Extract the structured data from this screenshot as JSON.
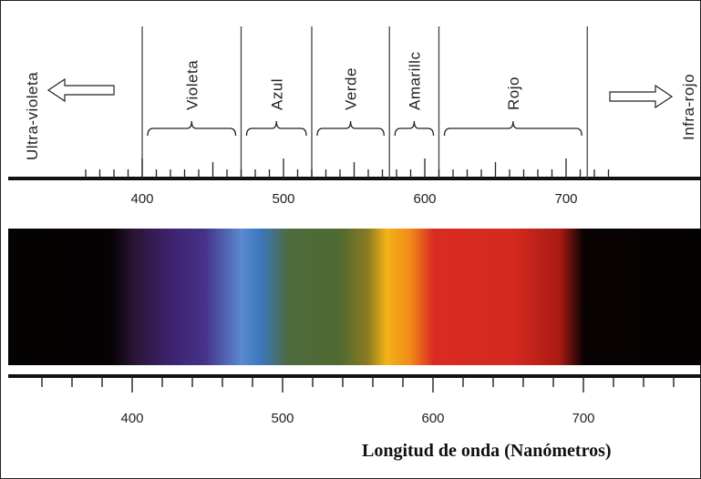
{
  "bands": [
    {
      "label": "Violeta",
      "from": 400,
      "to": 470
    },
    {
      "label": "Azul",
      "from": 470,
      "to": 520
    },
    {
      "label": "Verde",
      "from": 520,
      "to": 575
    },
    {
      "label": "Amarillc",
      "from": 575,
      "to": 610
    },
    {
      "label": "Rojo",
      "from": 610,
      "to": 715
    }
  ],
  "ultraviolet_label": "Ultra-violeta",
  "infrared_label": "Infra-rojo",
  "top_scale": {
    "ticks": [
      400,
      500,
      600,
      700
    ],
    "range": [
      360,
      730
    ]
  },
  "bottom_scale": {
    "ticks": [
      400,
      500,
      600,
      700
    ],
    "range": [
      340,
      780
    ]
  },
  "axis_title": "Longitud de onda (Nanómetros)",
  "spectrum_colors": [
    {
      "nm": 340,
      "color": "#050202"
    },
    {
      "nm": 405,
      "color": "#060203"
    },
    {
      "nm": 420,
      "color": "#2a1535"
    },
    {
      "nm": 440,
      "color": "#3a2168"
    },
    {
      "nm": 465,
      "color": "#46328a"
    },
    {
      "nm": 488,
      "color": "#5a8ad0"
    },
    {
      "nm": 500,
      "color": "#3c77bd"
    },
    {
      "nm": 518,
      "color": "#4d6b3e"
    },
    {
      "nm": 550,
      "color": "#4f6a31"
    },
    {
      "nm": 568,
      "color": "#8a7a22"
    },
    {
      "nm": 580,
      "color": "#f3b318"
    },
    {
      "nm": 595,
      "color": "#f28a18"
    },
    {
      "nm": 610,
      "color": "#da2a24"
    },
    {
      "nm": 660,
      "color": "#d42a20"
    },
    {
      "nm": 690,
      "color": "#a81a12"
    },
    {
      "nm": 705,
      "color": "#090203"
    },
    {
      "nm": 780,
      "color": "#050202"
    }
  ]
}
